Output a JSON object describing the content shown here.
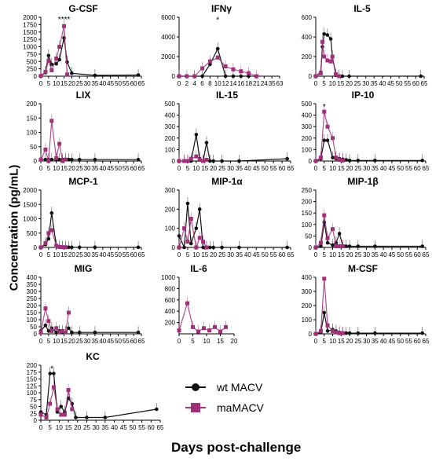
{
  "figure": {
    "ylabel": "Concentration (pg/mL)",
    "xlabel": "Days post-challenge",
    "legend": [
      {
        "label": "wt MACV",
        "color": "#111111",
        "marker": "circle"
      },
      {
        "label": "maMACV",
        "color": "#a0307a",
        "marker": "square"
      }
    ]
  },
  "chart_data": [
    {
      "type": "line",
      "title": "G-CSF",
      "ylim": [
        0,
        2000
      ],
      "yticks": [
        "0",
        "250",
        "500",
        "750",
        "1000",
        "1250",
        "1500",
        "1750",
        "2000"
      ],
      "xticks": [
        "0",
        "5",
        "10",
        "15",
        "20",
        "25",
        "30",
        "35",
        "40",
        "45",
        "50",
        "55",
        "60",
        "65"
      ],
      "xlim": [
        0,
        65
      ],
      "annotations": [
        {
          "x": 15,
          "y": 1950,
          "text": "****"
        }
      ],
      "series": [
        {
          "name": "wt MACV",
          "x": [
            0,
            3,
            5,
            7,
            10,
            12,
            15,
            17,
            20,
            35,
            63
          ],
          "y": [
            10,
            120,
            700,
            400,
            420,
            560,
            1300,
            480,
            100,
            30,
            40
          ]
        },
        {
          "name": "maMACV",
          "x": [
            0,
            3,
            5,
            7,
            10,
            12,
            15,
            17
          ],
          "y": [
            10,
            150,
            520,
            200,
            600,
            1000,
            1700,
            60
          ]
        }
      ]
    },
    {
      "type": "line",
      "title": "IFNγ",
      "ylim": [
        0,
        6000
      ],
      "yticks": [
        "0",
        "2000",
        "4000",
        "6000"
      ],
      "xticks": [
        "0",
        "2",
        "4",
        "6",
        "8",
        "10",
        "12",
        "14",
        "16",
        "18",
        "21",
        "24",
        "35",
        "63"
      ],
      "xlim": [
        0,
        13
      ],
      "annotations": [
        {
          "x": 5,
          "y": 5800,
          "text": "*"
        }
      ],
      "series": [
        {
          "name": "wt MACV",
          "x": [
            0,
            2,
            3,
            4,
            5,
            6,
            7,
            8,
            9
          ],
          "y": [
            0,
            0,
            0,
            1200,
            2800,
            0,
            0,
            0,
            0
          ]
        },
        {
          "name": "maMACV",
          "x": [
            0,
            1,
            2,
            3,
            4,
            5,
            6,
            7,
            8,
            9,
            10
          ],
          "y": [
            0,
            0,
            0,
            800,
            1500,
            1900,
            1000,
            700,
            500,
            300,
            0
          ]
        }
      ]
    },
    {
      "type": "line",
      "title": "IL-5",
      "ylim": [
        0,
        600
      ],
      "yticks": [
        "0",
        "200",
        "400",
        "600"
      ],
      "xticks": [
        "0",
        "5",
        "10",
        "15",
        "20",
        "25",
        "30",
        "35",
        "40",
        "45",
        "50",
        "55",
        "60",
        "65"
      ],
      "xlim": [
        0,
        65
      ],
      "series": [
        {
          "name": "wt MACV",
          "x": [
            0,
            3,
            4,
            5,
            7,
            9,
            10,
            12,
            14,
            16,
            20,
            63
          ],
          "y": [
            0,
            40,
            300,
            430,
            420,
            380,
            200,
            10,
            0,
            0,
            0,
            0
          ]
        },
        {
          "name": "maMACV",
          "x": [
            0,
            3,
            4,
            5,
            7,
            9,
            10,
            12,
            14
          ],
          "y": [
            0,
            30,
            350,
            200,
            160,
            150,
            200,
            20,
            0
          ]
        }
      ]
    },
    {
      "type": "line",
      "title": "LIX",
      "ylim": [
        0,
        200
      ],
      "yticks": [
        "0",
        "50",
        "100",
        "150",
        "200"
      ],
      "xticks": [
        "0",
        "5",
        "10",
        "15",
        "20",
        "25",
        "30",
        "35",
        "40",
        "45",
        "50",
        "55",
        "60",
        "65"
      ],
      "xlim": [
        0,
        65
      ],
      "series": [
        {
          "name": "wt MACV",
          "x": [
            0,
            3,
            5,
            7,
            10,
            12,
            14,
            16,
            18,
            20,
            25,
            35,
            63
          ],
          "y": [
            5,
            5,
            5,
            5,
            5,
            5,
            5,
            5,
            5,
            5,
            5,
            5,
            5
          ]
        },
        {
          "name": "maMACV",
          "x": [
            0,
            3,
            5,
            7,
            10,
            12,
            14,
            16
          ],
          "y": [
            5,
            40,
            0,
            140,
            10,
            60,
            0,
            5
          ]
        }
      ]
    },
    {
      "type": "line",
      "title": "IL-15",
      "ylim": [
        0,
        500
      ],
      "yticks": [
        "0",
        "100",
        "200",
        "300",
        "400",
        "500"
      ],
      "xticks": [
        "0",
        "5",
        "10",
        "15",
        "20",
        "25",
        "30",
        "35",
        "40",
        "45",
        "50",
        "55",
        "60",
        "65"
      ],
      "xlim": [
        0,
        65
      ],
      "series": [
        {
          "name": "wt MACV",
          "x": [
            0,
            3,
            5,
            7,
            10,
            12,
            14,
            16,
            18,
            20,
            25,
            35,
            63
          ],
          "y": [
            0,
            0,
            0,
            0,
            230,
            20,
            0,
            160,
            0,
            0,
            0,
            0,
            20
          ]
        },
        {
          "name": "maMACV",
          "x": [
            0,
            3,
            5,
            7,
            10,
            12,
            14,
            16
          ],
          "y": [
            0,
            0,
            0,
            20,
            40,
            10,
            0,
            10
          ]
        }
      ]
    },
    {
      "type": "line",
      "title": "IP-10",
      "ylim": [
        0,
        500
      ],
      "yticks": [
        "0",
        "100",
        "200",
        "300",
        "400",
        "500"
      ],
      "xticks": [
        "0",
        "5",
        "10",
        "15",
        "20",
        "25",
        "30",
        "35",
        "40",
        "45",
        "50",
        "55",
        "60",
        "65"
      ],
      "xlim": [
        0,
        65
      ],
      "annotations": [
        {
          "x": 5,
          "y": 480,
          "text": "*"
        }
      ],
      "series": [
        {
          "name": "wt MACV",
          "x": [
            0,
            3,
            5,
            7,
            10,
            12,
            14,
            16,
            18,
            20,
            25,
            35,
            63
          ],
          "y": [
            0,
            20,
            180,
            180,
            30,
            20,
            20,
            15,
            10,
            5,
            5,
            5,
            5
          ]
        },
        {
          "name": "maMACV",
          "x": [
            0,
            3,
            5,
            7,
            10,
            12,
            14,
            16
          ],
          "y": [
            0,
            30,
            430,
            300,
            200,
            30,
            10,
            5
          ]
        }
      ]
    },
    {
      "type": "line",
      "title": "MCP-1",
      "ylim": [
        0,
        2000
      ],
      "yticks": [
        "0",
        "500",
        "1000",
        "1500",
        "2000"
      ],
      "xticks": [
        "0",
        "5",
        "10",
        "15",
        "20",
        "25",
        "30",
        "35",
        "40",
        "45",
        "50",
        "55",
        "60",
        "65"
      ],
      "xlim": [
        0,
        65
      ],
      "series": [
        {
          "name": "wt MACV",
          "x": [
            0,
            3,
            5,
            7,
            10,
            12,
            14,
            16,
            18,
            20,
            25,
            35,
            63
          ],
          "y": [
            0,
            100,
            300,
            1200,
            50,
            10,
            5,
            5,
            5,
            5,
            5,
            5,
            5
          ]
        },
        {
          "name": "maMACV",
          "x": [
            0,
            3,
            5,
            7,
            10,
            12,
            14,
            16
          ],
          "y": [
            0,
            150,
            500,
            600,
            60,
            20,
            10,
            5
          ]
        }
      ]
    },
    {
      "type": "line",
      "title": "MIP-1α",
      "ylim": [
        0,
        300
      ],
      "yticks": [
        "0",
        "100",
        "200",
        "300"
      ],
      "xticks": [
        "0",
        "5",
        "10",
        "15",
        "20",
        "25",
        "30",
        "35",
        "40",
        "45",
        "50",
        "55",
        "60",
        "65"
      ],
      "xlim": [
        0,
        65
      ],
      "series": [
        {
          "name": "wt MACV",
          "x": [
            0,
            3,
            5,
            7,
            10,
            12,
            14,
            16,
            18,
            20,
            25,
            35,
            63
          ],
          "y": [
            60,
            0,
            230,
            20,
            100,
            200,
            0,
            0,
            0,
            0,
            0,
            0,
            0
          ]
        },
        {
          "name": "maMACV",
          "x": [
            0,
            3,
            5,
            7,
            10,
            12,
            14,
            16
          ],
          "y": [
            0,
            100,
            30,
            150,
            0,
            50,
            30,
            0
          ]
        }
      ]
    },
    {
      "type": "line",
      "title": "MIP-1β",
      "ylim": [
        0,
        250
      ],
      "yticks": [
        "0",
        "50",
        "100",
        "150",
        "200",
        "250"
      ],
      "xticks": [
        "0",
        "5",
        "10",
        "15",
        "20",
        "25",
        "30",
        "35",
        "40",
        "45",
        "50",
        "55",
        "60",
        "65"
      ],
      "xlim": [
        0,
        65
      ],
      "series": [
        {
          "name": "wt MACV",
          "x": [
            0,
            3,
            5,
            7,
            10,
            12,
            14,
            16,
            18,
            20,
            25,
            35,
            63
          ],
          "y": [
            0,
            5,
            110,
            20,
            10,
            20,
            60,
            5,
            5,
            5,
            5,
            5,
            5
          ]
        },
        {
          "name": "maMACV",
          "x": [
            0,
            3,
            5,
            7,
            10,
            12,
            14,
            16
          ],
          "y": [
            0,
            20,
            140,
            40,
            80,
            5,
            5,
            5
          ]
        }
      ]
    },
    {
      "type": "line",
      "title": "MIG",
      "ylim": [
        0,
        400
      ],
      "yticks": [
        "0",
        "50",
        "100",
        "150",
        "200",
        "250",
        "300",
        "350",
        "400"
      ],
      "xticks": [
        "0",
        "5",
        "10",
        "15",
        "20",
        "25",
        "30",
        "35",
        "40",
        "45",
        "50",
        "55",
        "60",
        "65"
      ],
      "xlim": [
        0,
        65
      ],
      "series": [
        {
          "name": "wt MACV",
          "x": [
            0,
            3,
            5,
            7,
            10,
            12,
            14,
            16,
            18,
            20,
            25,
            35,
            63
          ],
          "y": [
            20,
            60,
            20,
            40,
            10,
            20,
            10,
            10,
            40,
            10,
            10,
            10,
            10
          ]
        },
        {
          "name": "maMACV",
          "x": [
            0,
            3,
            5,
            7,
            10,
            12,
            14,
            16,
            18
          ],
          "y": [
            10,
            180,
            90,
            20,
            40,
            10,
            20,
            10,
            150
          ]
        }
      ]
    },
    {
      "type": "line",
      "title": "IL-6",
      "ylim": [
        0,
        1000
      ],
      "yticks": [
        "200",
        "400",
        "600",
        "800",
        "1000"
      ],
      "xticks": [
        "0",
        "5",
        "10",
        "15",
        "20"
      ],
      "xlim": [
        0,
        20
      ],
      "series": [
        {
          "name": "maMACV",
          "x": [
            0,
            3,
            5,
            7,
            9,
            11,
            13,
            15,
            17
          ],
          "y": [
            60,
            540,
            120,
            40,
            100,
            60,
            120,
            40,
            120
          ]
        }
      ]
    },
    {
      "type": "line",
      "title": "M-CSF",
      "ylim": [
        0,
        400
      ],
      "yticks": [
        "0",
        "100",
        "200",
        "300",
        "400"
      ],
      "xticks": [
        "0",
        "5",
        "10",
        "15",
        "20",
        "25",
        "30",
        "35",
        "40",
        "45",
        "50",
        "55",
        "60",
        "65"
      ],
      "xlim": [
        0,
        65
      ],
      "series": [
        {
          "name": "wt MACV",
          "x": [
            0,
            3,
            5,
            7,
            10,
            12,
            14,
            16,
            18,
            20,
            25,
            35,
            63
          ],
          "y": [
            0,
            10,
            150,
            20,
            30,
            20,
            10,
            5,
            5,
            5,
            5,
            5,
            5
          ]
        },
        {
          "name": "maMACV",
          "x": [
            0,
            3,
            5,
            7,
            10,
            12,
            14,
            16
          ],
          "y": [
            0,
            20,
            390,
            60,
            20,
            10,
            5,
            5
          ]
        }
      ]
    },
    {
      "type": "line",
      "title": "KC",
      "ylim": [
        0,
        200
      ],
      "yticks": [
        "0",
        "25",
        "50",
        "75",
        "100",
        "125",
        "150",
        "175",
        "200"
      ],
      "xticks": [
        "0",
        "5",
        "10",
        "15",
        "20",
        "25",
        "30",
        "35",
        "40",
        "45",
        "50",
        "55",
        "60",
        "65"
      ],
      "xlim": [
        0,
        65
      ],
      "annotations": [
        {
          "x": 6,
          "y": 190,
          "text": "*"
        }
      ],
      "series": [
        {
          "name": "wt MACV",
          "x": [
            0,
            3,
            5,
            7,
            9,
            11,
            13,
            15,
            17,
            19,
            25,
            35,
            63
          ],
          "y": [
            30,
            20,
            170,
            170,
            30,
            50,
            30,
            80,
            60,
            10,
            10,
            10,
            40
          ]
        },
        {
          "name": "maMACV",
          "x": [
            0,
            3,
            5,
            7,
            9,
            11,
            13,
            15,
            17
          ],
          "y": [
            20,
            10,
            60,
            120,
            40,
            20,
            20,
            110,
            40
          ]
        }
      ]
    }
  ]
}
